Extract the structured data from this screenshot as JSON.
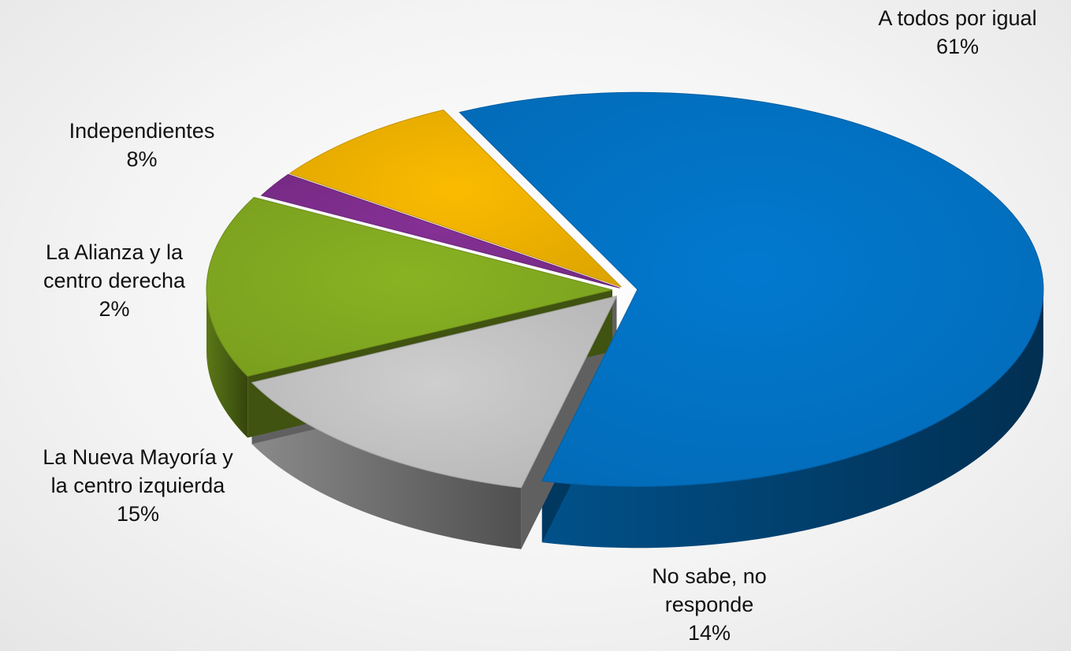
{
  "chart_data": {
    "type": "pie",
    "title": "",
    "slices": [
      {
        "label_lines": [
          "A todos por igual"
        ],
        "value": 61,
        "value_label": "61%",
        "color": "#0270c0"
      },
      {
        "label_lines": [
          "No sabe, no",
          "responde"
        ],
        "value": 14,
        "value_label": "14%",
        "color": "#bfbfbf"
      },
      {
        "label_lines": [
          "La Nueva Mayoría y",
          "la centro izquierda"
        ],
        "value": 15,
        "value_label": "15%",
        "color": "#7fa620"
      },
      {
        "label_lines": [
          "La Alianza y la",
          "centro derecha"
        ],
        "value": 2,
        "value_label": "2%",
        "color": "#7b2c8a"
      },
      {
        "label_lines": [
          "Independientes"
        ],
        "value": 8,
        "value_label": "8%",
        "color": "#e8ad00"
      }
    ]
  }
}
